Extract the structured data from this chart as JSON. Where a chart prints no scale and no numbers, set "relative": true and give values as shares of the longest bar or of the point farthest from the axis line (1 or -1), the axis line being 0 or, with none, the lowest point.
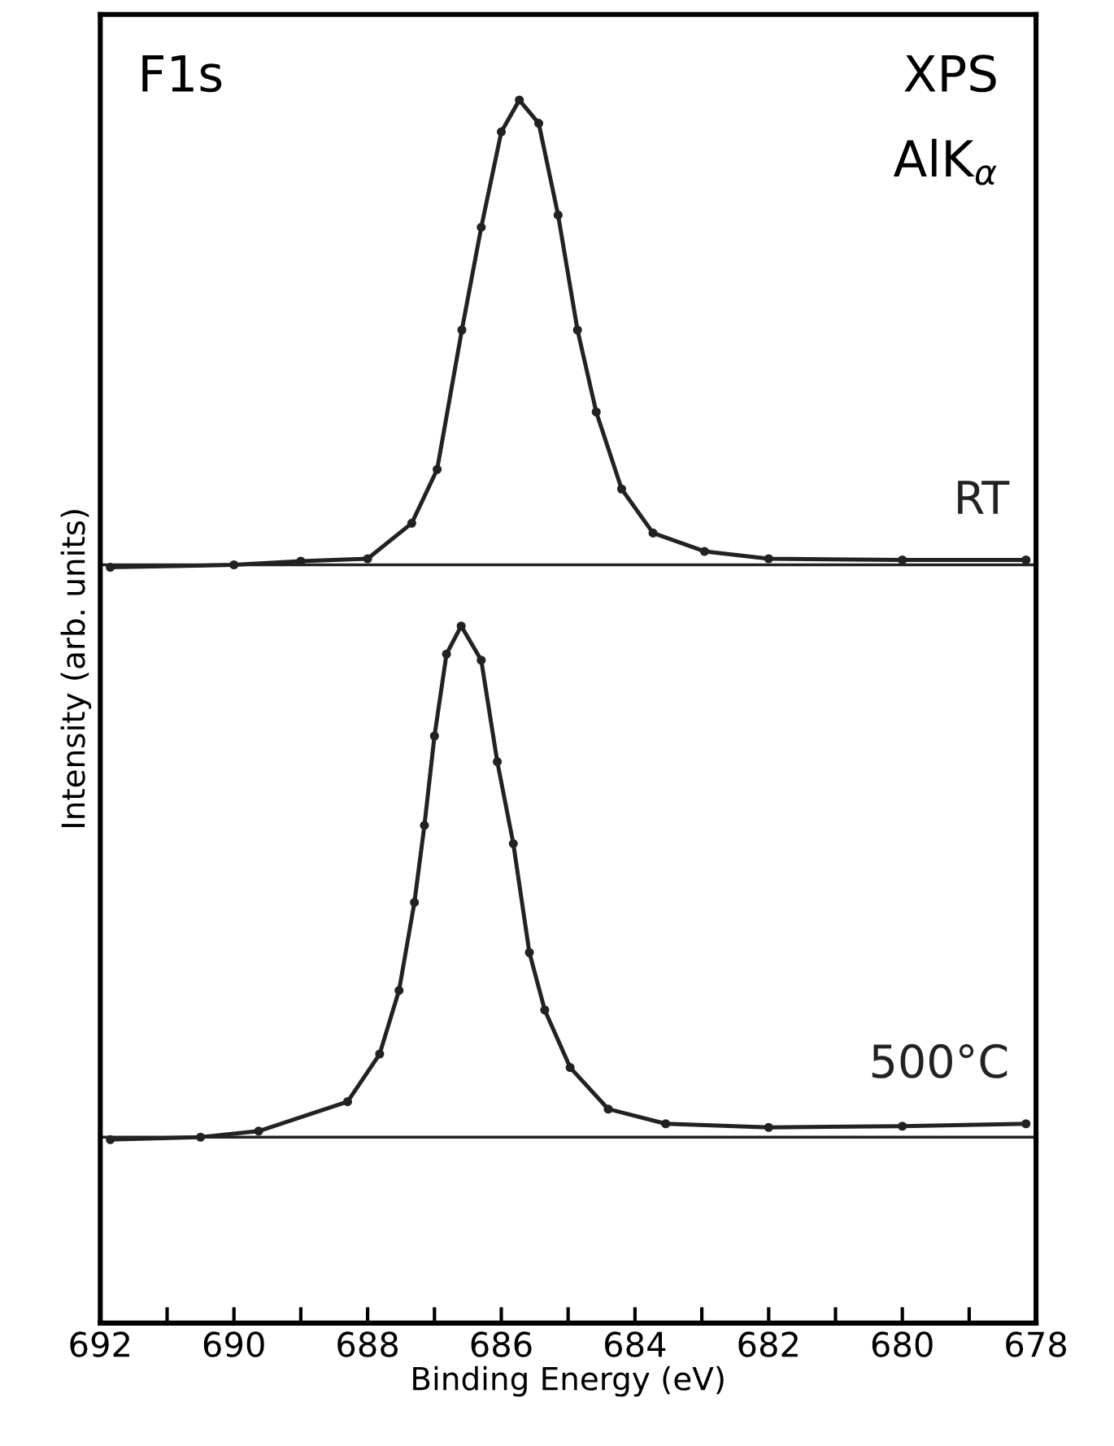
{
  "chart_data": {
    "type": "line",
    "relative": true,
    "xlabel": "Binding Energy (eV)",
    "ylabel": "Intensity (arb. units)",
    "annotations": [
      "F1s",
      "XPS",
      "AlK$_{α}$"
    ],
    "xlim": [
      692,
      678
    ],
    "xticks": [
      692,
      {
        "value": 691,
        "label": null
      },
      690,
      {
        "value": 689,
        "label": null
      },
      688,
      {
        "value": 687,
        "label": null
      },
      686,
      {
        "value": 685,
        "label": null
      },
      684,
      {
        "value": 683,
        "label": null
      },
      682,
      {
        "value": 681,
        "label": null
      },
      680,
      {
        "value": 679,
        "label": null
      },
      678
    ],
    "marker": "circle",
    "line_style": "solid",
    "grid": false,
    "legend": false,
    "series": [
      {
        "name": "RT",
        "color": "#222222",
        "x": [
          691.85,
          690,
          689,
          688.0,
          687.34,
          686.96,
          686.59,
          686.3,
          686.0,
          685.73,
          685.44,
          685.15,
          684.86,
          684.58,
          684.2,
          683.73,
          682.96,
          682,
          680,
          678.15
        ],
        "values": [
          0.618,
          0.62,
          0.623,
          0.625,
          0.654,
          0.698,
          0.812,
          0.896,
          0.974,
          1.0,
          0.981,
          0.906,
          0.812,
          0.745,
          0.682,
          0.646,
          0.631,
          0.625,
          0.624,
          0.624
        ]
      },
      {
        "name": "500°C",
        "color": "#222222",
        "x": [
          691.85,
          690.5,
          689.63,
          688.3,
          687.82,
          687.53,
          687.3,
          687.15,
          687.0,
          686.82,
          686.6,
          686.3,
          686.06,
          685.82,
          685.58,
          685.35,
          684.97,
          684.4,
          683.54,
          682,
          680,
          678.15
        ],
        "values": [
          0.15,
          0.152,
          0.157,
          0.181,
          0.22,
          0.272,
          0.344,
          0.407,
          0.48,
          0.547,
          0.57,
          0.542,
          0.459,
          0.392,
          0.303,
          0.256,
          0.209,
          0.175,
          0.163,
          0.16,
          0.161,
          0.163
        ]
      }
    ],
    "ref_lines": [
      {
        "axis": "y",
        "value": 0.62,
        "color": "#222222"
      },
      {
        "axis": "y",
        "value": 0.152,
        "color": "#222222"
      }
    ]
  }
}
